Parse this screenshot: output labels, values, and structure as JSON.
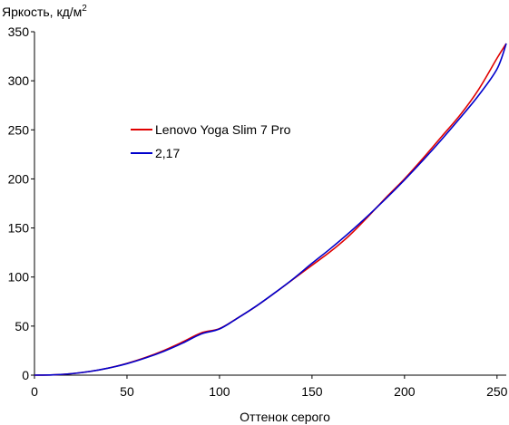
{
  "chart_data": {
    "type": "line",
    "title": "",
    "ylabel": "Яркость, кд/м",
    "ylabel_superscript": "2",
    "xlabel": "Оттенок серого",
    "xlim": [
      0,
      255
    ],
    "ylim": [
      0,
      350
    ],
    "x_ticks": [
      0,
      50,
      100,
      150,
      200,
      250
    ],
    "y_ticks": [
      0,
      50,
      100,
      150,
      200,
      250,
      300,
      350
    ],
    "grid": false,
    "legend_position": "center-left",
    "series": [
      {
        "name": "Lenovo Yoga Slim 7 Pro",
        "color": "#e00000",
        "x": [
          0,
          10,
          20,
          30,
          40,
          50,
          60,
          70,
          80,
          90,
          100,
          110,
          120,
          130,
          140,
          150,
          160,
          170,
          180,
          190,
          200,
          210,
          220,
          230,
          240,
          250,
          255
        ],
        "y": [
          0,
          0.3,
          1.5,
          3.8,
          7.3,
          12.0,
          18.0,
          25.2,
          33.8,
          43.0,
          47.5,
          58.5,
          70.5,
          84.0,
          98.0,
          112.0,
          126.0,
          142.0,
          161.0,
          181.0,
          200.0,
          221.0,
          243.0,
          265.0,
          291.0,
          323.0,
          338.0
        ]
      },
      {
        "name": "2,17",
        "color": "#0000cc",
        "x": [
          0,
          10,
          20,
          30,
          40,
          50,
          60,
          70,
          80,
          90,
          100,
          110,
          120,
          130,
          140,
          150,
          160,
          170,
          180,
          190,
          200,
          210,
          220,
          230,
          240,
          250,
          255
        ],
        "y": [
          0,
          0.3,
          1.5,
          3.8,
          7.2,
          11.7,
          17.5,
          24.4,
          32.6,
          41.9,
          47.1,
          58.4,
          70.6,
          84.1,
          98.4,
          114.0,
          129.0,
          145.0,
          162.0,
          180.0,
          199.0,
          219.0,
          240.0,
          262.0,
          285.0,
          312.0,
          338.0
        ]
      }
    ]
  }
}
